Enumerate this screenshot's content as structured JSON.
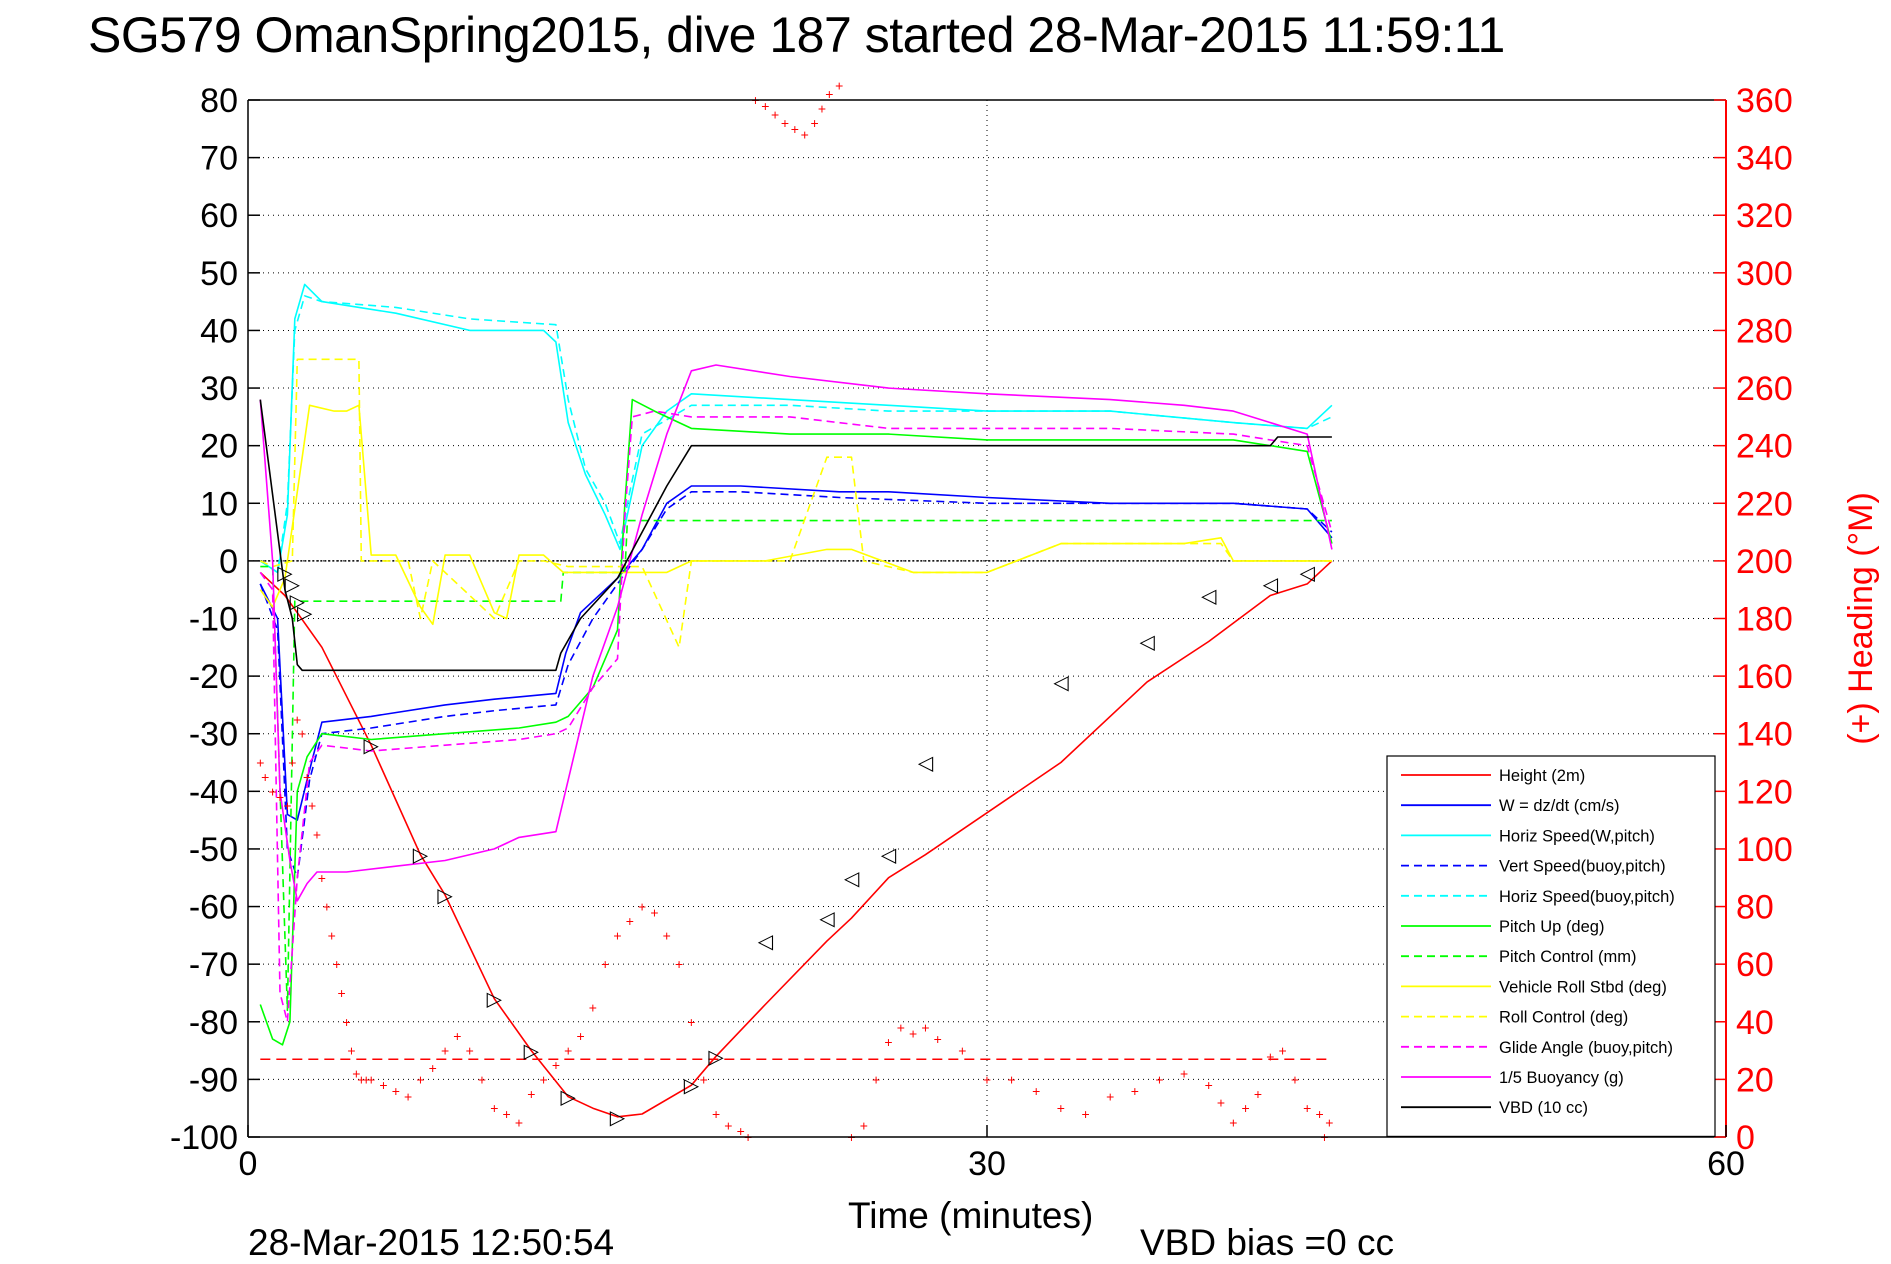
{
  "chart_data": {
    "type": "line",
    "title": "SG579 OmanSpring2015, dive 187 started 28-Mar-2015 11:59:11",
    "xlabel": "Time (minutes)",
    "ylabel_right": "(+) Heading (°M)",
    "footer_left": "28-Mar-2015 12:50:54",
    "footer_right": "VBD bias =0 cc",
    "xlim": [
      0,
      60
    ],
    "ylim": [
      -100,
      80
    ],
    "ylim_right": [
      0,
      360
    ],
    "x_ticks": [
      0,
      30,
      60
    ],
    "y_ticks": [
      80,
      70,
      60,
      50,
      40,
      30,
      20,
      10,
      0,
      -10,
      -20,
      -30,
      -40,
      -50,
      -60,
      -70,
      -80,
      -90,
      -100
    ],
    "y_right_ticks": [
      360,
      340,
      320,
      300,
      280,
      260,
      240,
      220,
      200,
      180,
      160,
      140,
      120,
      100,
      80,
      60,
      40,
      20,
      0
    ],
    "grid": "dotted",
    "legend_position": "bottom-right",
    "colors": {
      "height": "#ff0000",
      "w": "#0000ff",
      "horiz_speed_w": "#00ffff",
      "vert_speed_buoy": "#0000ff",
      "horiz_speed_buoy": "#00ffff",
      "pitch_up": "#00ff00",
      "pitch_control": "#00ff00",
      "roll": "#ffff00",
      "roll_control": "#ffff00",
      "glide": "#ff00ff",
      "buoyancy": "#ff00ff",
      "vbd": "#000000",
      "heading": "#ff0000",
      "axis_right": "#ff0000"
    },
    "series": [
      {
        "key": "height",
        "name": "Height (2m)",
        "color": "#ff0000",
        "dash": "",
        "x": [
          0.5,
          1.0,
          1.5,
          2.0,
          3.0,
          5.0,
          7.0,
          8.0,
          10.0,
          11.5,
          13.0,
          14.0,
          15.0,
          16.0,
          18.0,
          19.0,
          21.0,
          23.5,
          24.5,
          26.0,
          27.5,
          33.0,
          36.5,
          39.0,
          41.5,
          43.0,
          44.0
        ],
        "y": [
          -2,
          -4,
          -6,
          -9,
          -15,
          -32,
          -51,
          -58,
          -76,
          -85,
          -93,
          -95,
          -96.5,
          -96,
          -91,
          -86,
          -77,
          -66,
          -62,
          -55,
          -51,
          -35,
          -21,
          -14,
          -6,
          -4,
          0
        ]
      },
      {
        "key": "w",
        "name": "W = dz/dt (cm/s)",
        "color": "#0000ff",
        "dash": "",
        "x": [
          0.5,
          1.2,
          1.6,
          2.0,
          2.4,
          3.0,
          5.0,
          8.0,
          10.0,
          12.5,
          12.9,
          13.5,
          15.0,
          16.0,
          17.0,
          18.0,
          20.0,
          24.0,
          26.0,
          30.0,
          35.0,
          40.0,
          43.0,
          44.0
        ],
        "y": [
          -4,
          -10,
          -44,
          -45,
          -38,
          -28,
          -27,
          -25,
          -24,
          -23,
          -16,
          -9,
          -3,
          2,
          10,
          13,
          13,
          12,
          12,
          11,
          10,
          10,
          9,
          4
        ]
      },
      {
        "key": "horiz_speed_w",
        "name": "Horiz Speed(W,pitch)",
        "color": "#00ffff",
        "dash": "",
        "x": [
          0.5,
          1.2,
          1.6,
          1.9,
          2.3,
          3.0,
          6.0,
          9.0,
          12.0,
          12.5,
          13.0,
          13.7,
          14.5,
          15.1,
          15.5,
          16.0,
          17.0,
          18.0,
          22.0,
          26.0,
          30.0,
          35.0,
          40.0,
          43.0,
          44.0
        ],
        "y": [
          0,
          -2,
          8,
          42,
          48,
          45,
          43,
          40,
          40,
          38,
          24,
          15,
          8,
          2,
          10,
          20,
          26,
          29,
          28,
          27,
          26,
          26,
          24,
          23,
          27
        ]
      },
      {
        "key": "vert_speed_buoy",
        "name": "Vert Speed(buoy,pitch)",
        "color": "#0000ff",
        "dash": "8,5",
        "x": [
          0.5,
          1.2,
          1.6,
          2.0,
          2.5,
          3.0,
          5.0,
          8.0,
          10.0,
          12.5,
          13.0,
          14.0,
          15.0,
          16.0,
          17.0,
          18.0,
          20.0,
          24.0,
          30.0,
          40.0,
          43.0,
          44.0
        ],
        "y": [
          -4,
          -12,
          -50,
          -55,
          -38,
          -30,
          -29,
          -27,
          -26,
          -25,
          -18,
          -10,
          -4,
          2,
          9,
          12,
          12,
          11,
          10,
          10,
          9,
          5
        ]
      },
      {
        "key": "horiz_speed_buoy",
        "name": "Horiz Speed(buoy,pitch)",
        "color": "#00ffff",
        "dash": "8,5",
        "x": [
          0.5,
          1.2,
          1.6,
          1.9,
          2.3,
          3.0,
          6.0,
          9.0,
          12.5,
          13.0,
          13.7,
          14.5,
          15.1,
          15.5,
          16.0,
          18.0,
          22.0,
          26.0,
          30.0,
          35.0,
          40.0,
          43.0,
          44.0
        ],
        "y": [
          0,
          -2,
          10,
          40,
          46,
          45,
          44,
          42,
          41,
          28,
          16,
          10,
          3,
          12,
          22,
          27,
          27,
          26,
          26,
          26,
          24,
          23,
          25
        ]
      },
      {
        "key": "pitch_up",
        "name": "Pitch Up (deg)",
        "color": "#00ff00",
        "dash": "",
        "x": [
          0.5,
          1.0,
          1.4,
          1.7,
          2.0,
          2.4,
          3.0,
          5.0,
          8.0,
          11.0,
          12.5,
          13.0,
          14.0,
          15.0,
          15.3,
          15.6,
          16.5,
          18.0,
          22.0,
          26.0,
          30.0,
          35.0,
          40.0,
          43.0,
          44.0
        ],
        "y": [
          -77,
          -83,
          -84,
          -80,
          -40,
          -34,
          -30,
          -31,
          -30,
          -29,
          -28,
          -27,
          -22,
          -12,
          10,
          28,
          26,
          23,
          22,
          22,
          21,
          21,
          21,
          19,
          3
        ]
      },
      {
        "key": "pitch_control",
        "name": "Pitch Control (mm)",
        "color": "#00ff00",
        "dash": "8,5",
        "x": [
          0.5,
          1.0,
          1.6,
          1.9,
          12.7,
          12.8,
          15.3,
          15.4,
          44.0
        ],
        "y": [
          -1,
          -1,
          -78,
          -7,
          -7,
          -2,
          -2,
          7,
          7
        ]
      },
      {
        "key": "roll",
        "name": "Vehicle Roll Stbd (deg)",
        "color": "#ffff00",
        "dash": "",
        "x": [
          0.5,
          1.0,
          1.5,
          2.0,
          2.5,
          3.5,
          4.0,
          4.5,
          5.0,
          6.0,
          7.0,
          7.5,
          8.0,
          9.0,
          10.0,
          10.5,
          11.0,
          12.0,
          12.8,
          13.5,
          15.0,
          16.0,
          17.0,
          18.0,
          21.0,
          23.5,
          24.5,
          27.0,
          30.0,
          33.0,
          38.0,
          39.5,
          40.0,
          43.0,
          44.0
        ],
        "y": [
          -5,
          -8,
          -3,
          12,
          27,
          26,
          26,
          27,
          1,
          1,
          -8,
          -11,
          1,
          1,
          -9,
          -10,
          1,
          1,
          -2,
          -2,
          -2,
          -2,
          -2,
          0,
          0,
          2,
          2,
          -2,
          -2,
          3,
          3,
          4,
          0,
          0,
          0
        ]
      },
      {
        "key": "roll_control",
        "name": "Roll Control (deg)",
        "color": "#ffff00",
        "dash": "8,5",
        "x": [
          0.5,
          1.0,
          1.8,
          2.0,
          4.5,
          4.6,
          6.5,
          7.0,
          7.5,
          10.0,
          11.0,
          12.0,
          13.0,
          16.0,
          17.5,
          18.0,
          22.0,
          23.5,
          24.5,
          25.0,
          27.0,
          30.0,
          33.0,
          38.0,
          39.5,
          40.0,
          43.0,
          44.0
        ],
        "y": [
          0,
          -1,
          0,
          35,
          35,
          0,
          0,
          -10,
          0,
          -10,
          0,
          0,
          -1,
          -1,
          -15,
          0,
          0,
          18,
          18,
          0,
          -2,
          -2,
          3,
          3,
          3,
          0,
          0,
          0
        ]
      },
      {
        "key": "glide",
        "name": "Glide Angle (buoy,pitch)",
        "color": "#ff00ff",
        "dash": "8,5",
        "x": [
          0.5,
          1.0,
          1.3,
          1.6,
          2.0,
          2.5,
          3.0,
          5.0,
          8.0,
          11.0,
          12.5,
          13.0,
          14.0,
          15.0,
          15.3,
          15.6,
          16.5,
          18.0,
          22.0,
          26.0,
          30.0,
          35.0,
          40.0,
          43.0,
          44.0
        ],
        "y": [
          -2,
          -5,
          -75,
          -80,
          -55,
          -35,
          -32,
          -33,
          -32,
          -31,
          -30,
          -29,
          -22,
          -17,
          8,
          25,
          26,
          25,
          25,
          23,
          23,
          23,
          22,
          20,
          5
        ]
      },
      {
        "key": "buoyancy",
        "name": "1/5 Buoyancy (g)",
        "color": "#ff00ff",
        "dash": "",
        "x": [
          0.5,
          1.0,
          1.3,
          1.7,
          2.0,
          2.4,
          2.8,
          4.0,
          6.0,
          8.0,
          10.0,
          11.0,
          12.5,
          14.0,
          15.0,
          16.0,
          17.0,
          18.0,
          19.0,
          22.0,
          26.0,
          30.0,
          35.0,
          38.0,
          40.0,
          43.0,
          44.0
        ],
        "y": [
          28,
          0,
          -40,
          -52,
          -59,
          -56,
          -54,
          -54,
          -53,
          -52,
          -50,
          -48,
          -47,
          -20,
          -8,
          8,
          22,
          33,
          34,
          32,
          30,
          29,
          28,
          27,
          26,
          22,
          2
        ]
      },
      {
        "key": "vbd",
        "name": "VBD (10 cc)",
        "color": "#000000",
        "dash": "",
        "x": [
          0.5,
          1.5,
          1.8,
          2.0,
          2.2,
          12.5,
          12.7,
          13.5,
          15.0,
          17.0,
          18.0,
          41.5,
          41.8,
          44.0
        ],
        "y": [
          28,
          -5,
          -10,
          -18,
          -19,
          -19,
          -16,
          -10,
          -3,
          13,
          20,
          20,
          21.5,
          21.5
        ]
      }
    ],
    "horizontal_lines": [
      {
        "key": "zero",
        "y": 0,
        "color": "#000000",
        "dash": "2,2",
        "x": [
          0.5,
          44.0
        ]
      },
      {
        "key": "pitch_neutral",
        "y": -86.5,
        "color": "#ff0000",
        "dash": "10,6",
        "x": [
          0.5,
          44.0
        ]
      }
    ],
    "heading_markers": {
      "color": "#ff0000",
      "symbol": "+",
      "x": [
        0.5,
        0.7,
        1.0,
        1.3,
        1.6,
        1.8,
        2.0,
        2.2,
        2.4,
        2.6,
        2.8,
        3.0,
        3.2,
        3.4,
        3.6,
        3.8,
        4.0,
        4.2,
        4.4,
        4.6,
        4.8,
        5.0,
        5.5,
        6.0,
        6.5,
        7.0,
        7.5,
        8.0,
        8.5,
        9.0,
        9.5,
        10.0,
        10.5,
        11.0,
        11.5,
        12.0,
        12.5,
        13.0,
        13.5,
        14.0,
        14.5,
        15.0,
        15.5,
        16.0,
        16.5,
        17.0,
        17.5,
        18.0,
        18.5,
        19.0,
        19.5,
        20.0,
        20.3,
        20.6,
        21.0,
        21.4,
        21.8,
        22.2,
        22.6,
        23.0,
        23.3,
        23.6,
        24.0,
        24.5,
        25.0,
        25.5,
        26.0,
        26.5,
        27.0,
        27.5,
        28.0,
        29.0,
        30.0,
        31.0,
        32.0,
        33.0,
        34.0,
        35.0,
        36.0,
        37.0,
        38.0,
        39.0,
        39.5,
        40.0,
        40.5,
        41.0,
        41.5,
        42.0,
        42.5,
        43.0,
        43.5,
        43.7,
        43.9
      ],
      "y": [
        130,
        125,
        120,
        118,
        115,
        130,
        145,
        140,
        125,
        115,
        105,
        90,
        80,
        70,
        60,
        50,
        40,
        30,
        22,
        20,
        20,
        20,
        18,
        16,
        14,
        20,
        24,
        30,
        35,
        30,
        20,
        10,
        8,
        5,
        15,
        20,
        25,
        30,
        35,
        45,
        60,
        70,
        75,
        80,
        78,
        70,
        60,
        40,
        20,
        8,
        4,
        2,
        0,
        360,
        358,
        355,
        352,
        350,
        348,
        352,
        357,
        362,
        365,
        0,
        4,
        20,
        33,
        38,
        36,
        38,
        34,
        30,
        20,
        20,
        16,
        10,
        8,
        14,
        16,
        20,
        22,
        18,
        12,
        5,
        10,
        15,
        28,
        30,
        20,
        10,
        8,
        0,
        5
      ]
    },
    "depth_markers": {
      "down_label": "▷",
      "up_label": "◁",
      "down_x": [
        1.5,
        1.8,
        2.0,
        2.3,
        5.0,
        7.0,
        8.0,
        10.0,
        11.5
      ],
      "down_y": [
        -2,
        -4,
        -7,
        -9,
        -32,
        -51,
        -58,
        -76,
        -85
      ],
      "bottom_x": [
        13.0,
        15.0,
        18.0,
        19.0
      ],
      "bottom_y": [
        -93,
        -96.5,
        -91,
        -86
      ],
      "up_x": [
        21.0,
        23.5,
        24.5,
        26.0,
        27.5,
        33.0,
        36.5,
        39.0,
        41.5,
        43.0
      ],
      "up_y": [
        -66,
        -62,
        -55,
        -51,
        -35,
        -21,
        -14,
        -6,
        -4,
        -2
      ]
    }
  }
}
